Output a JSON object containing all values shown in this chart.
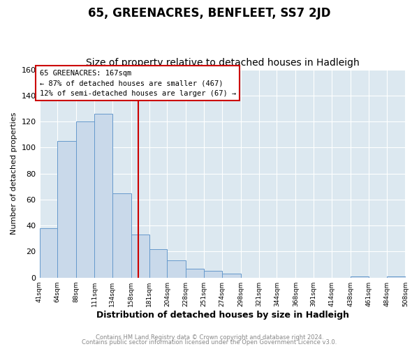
{
  "title": "65, GREENACRES, BENFLEET, SS7 2JD",
  "subtitle": "Size of property relative to detached houses in Hadleigh",
  "xlabel": "Distribution of detached houses by size in Hadleigh",
  "ylabel": "Number of detached properties",
  "bin_edges": [
    41,
    64,
    88,
    111,
    134,
    158,
    181,
    204,
    228,
    251,
    274,
    298,
    321,
    344,
    368,
    391,
    414,
    438,
    461,
    484,
    508
  ],
  "bar_heights": [
    38,
    105,
    120,
    126,
    65,
    33,
    22,
    13,
    7,
    5,
    3,
    0,
    0,
    0,
    0,
    0,
    0,
    1,
    0,
    1
  ],
  "bar_color": "#c9d9ea",
  "bar_edgecolor": "#6699cc",
  "vline_x": 167,
  "vline_color": "#cc0000",
  "ylim": [
    0,
    160
  ],
  "yticks": [
    0,
    20,
    40,
    60,
    80,
    100,
    120,
    140,
    160
  ],
  "annotation_title": "65 GREENACRES: 167sqm",
  "annotation_line1": "← 87% of detached houses are smaller (467)",
  "annotation_line2": "12% of semi-detached houses are larger (67) →",
  "annotation_box_facecolor": "#ffffff",
  "annotation_box_edgecolor": "#cc0000",
  "footer_line1": "Contains HM Land Registry data © Crown copyright and database right 2024.",
  "footer_line2": "Contains public sector information licensed under the Open Government Licence v3.0.",
  "plot_bg_color": "#dce8f0",
  "fig_bg_color": "#ffffff",
  "title_fontsize": 12,
  "subtitle_fontsize": 10,
  "ylabel_fontsize": 8,
  "xlabel_fontsize": 9
}
